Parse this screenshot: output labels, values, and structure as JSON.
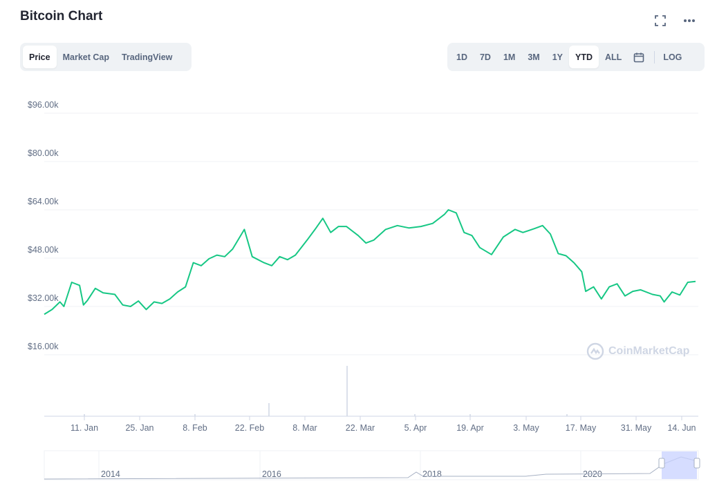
{
  "header": {
    "title": "Bitcoin Chart",
    "fullscreen_icon": "fullscreen-icon",
    "more_icon": "more-horizontal-icon"
  },
  "view_tabs": [
    {
      "label": "Price",
      "active": true
    },
    {
      "label": "Market Cap",
      "active": false
    },
    {
      "label": "TradingView",
      "active": false
    }
  ],
  "range_tabs": [
    {
      "label": "1D",
      "active": false
    },
    {
      "label": "7D",
      "active": false
    },
    {
      "label": "1M",
      "active": false
    },
    {
      "label": "3M",
      "active": false
    },
    {
      "label": "1Y",
      "active": false
    },
    {
      "label": "YTD",
      "active": true
    },
    {
      "label": "ALL",
      "active": false
    }
  ],
  "calendar_icon": "calendar-icon",
  "log_label": "LOG",
  "watermark": "CoinMarketCap",
  "colors": {
    "line": "#16c784",
    "grid": "#eff2f5",
    "nav_fill": "#c8d1ff",
    "nav_line": "#a6b0c3"
  },
  "chart_data": {
    "type": "line",
    "title": "",
    "ylim": [
      16000,
      100000
    ],
    "y_ticks": [
      16000,
      32000,
      48000,
      64000,
      80000,
      96000
    ],
    "y_tick_labels": [
      "$16.00k",
      "$32.00k",
      "$48.00k",
      "$64.00k",
      "$80.00k",
      "$96.00k"
    ],
    "x_tick_labels": [
      "11. Jan",
      "25. Jan",
      "8. Feb",
      "22. Feb",
      "8. Mar",
      "22. Mar",
      "5. Apr",
      "19. Apr",
      "3. May",
      "17. May",
      "31. May",
      "14. Jun"
    ],
    "series": [
      {
        "points": [
          [
            "2021-01-01",
            29400
          ],
          [
            "2021-01-03",
            31000
          ],
          [
            "2021-01-05",
            33500
          ],
          [
            "2021-01-06",
            32000
          ],
          [
            "2021-01-08",
            40000
          ],
          [
            "2021-01-10",
            39000
          ],
          [
            "2021-01-11",
            32500
          ],
          [
            "2021-01-12",
            34000
          ],
          [
            "2021-01-14",
            38000
          ],
          [
            "2021-01-16",
            36500
          ],
          [
            "2021-01-19",
            36000
          ],
          [
            "2021-01-21",
            32500
          ],
          [
            "2021-01-23",
            32000
          ],
          [
            "2021-01-25",
            33800
          ],
          [
            "2021-01-27",
            31000
          ],
          [
            "2021-01-29",
            33500
          ],
          [
            "2021-01-31",
            33000
          ],
          [
            "2021-02-02",
            34500
          ],
          [
            "2021-02-04",
            36800
          ],
          [
            "2021-02-06",
            38500
          ],
          [
            "2021-02-08",
            46500
          ],
          [
            "2021-02-10",
            45500
          ],
          [
            "2021-02-12",
            47800
          ],
          [
            "2021-02-14",
            49000
          ],
          [
            "2021-02-16",
            48500
          ],
          [
            "2021-02-18",
            51000
          ],
          [
            "2021-02-21",
            57500
          ],
          [
            "2021-02-23",
            48500
          ],
          [
            "2021-02-26",
            46500
          ],
          [
            "2021-02-28",
            45500
          ],
          [
            "2021-03-02",
            48500
          ],
          [
            "2021-03-04",
            47500
          ],
          [
            "2021-03-06",
            49000
          ],
          [
            "2021-03-09",
            54000
          ],
          [
            "2021-03-11",
            57500
          ],
          [
            "2021-03-13",
            61200
          ],
          [
            "2021-03-15",
            56500
          ],
          [
            "2021-03-17",
            58500
          ],
          [
            "2021-03-19",
            58500
          ],
          [
            "2021-03-22",
            55500
          ],
          [
            "2021-03-24",
            53000
          ],
          [
            "2021-03-26",
            54000
          ],
          [
            "2021-03-29",
            57500
          ],
          [
            "2021-04-01",
            58800
          ],
          [
            "2021-04-04",
            58000
          ],
          [
            "2021-04-07",
            58500
          ],
          [
            "2021-04-10",
            59500
          ],
          [
            "2021-04-13",
            62500
          ],
          [
            "2021-04-14",
            64000
          ],
          [
            "2021-04-16",
            63000
          ],
          [
            "2021-04-18",
            56500
          ],
          [
            "2021-04-20",
            55500
          ],
          [
            "2021-04-22",
            51500
          ],
          [
            "2021-04-25",
            49200
          ],
          [
            "2021-04-28",
            55000
          ],
          [
            "2021-05-01",
            57500
          ],
          [
            "2021-05-03",
            56500
          ],
          [
            "2021-05-06",
            57800
          ],
          [
            "2021-05-08",
            58800
          ],
          [
            "2021-05-10",
            56000
          ],
          [
            "2021-05-12",
            49500
          ],
          [
            "2021-05-14",
            48800
          ],
          [
            "2021-05-16",
            46500
          ],
          [
            "2021-05-18",
            43500
          ],
          [
            "2021-05-19",
            37000
          ],
          [
            "2021-05-21",
            38500
          ],
          [
            "2021-05-23",
            34500
          ],
          [
            "2021-05-25",
            38500
          ],
          [
            "2021-05-27",
            39500
          ],
          [
            "2021-05-29",
            35500
          ],
          [
            "2021-05-31",
            37000
          ],
          [
            "2021-06-02",
            37500
          ],
          [
            "2021-06-05",
            36000
          ],
          [
            "2021-06-07",
            35500
          ],
          [
            "2021-06-08",
            33500
          ],
          [
            "2021-06-10",
            36800
          ],
          [
            "2021-06-12",
            35800
          ],
          [
            "2021-06-14",
            40000
          ],
          [
            "2021-06-16",
            40300
          ]
        ]
      }
    ],
    "navigator_x_labels": [
      "2014",
      "2016",
      "2018",
      "2020"
    ],
    "grid": true
  }
}
